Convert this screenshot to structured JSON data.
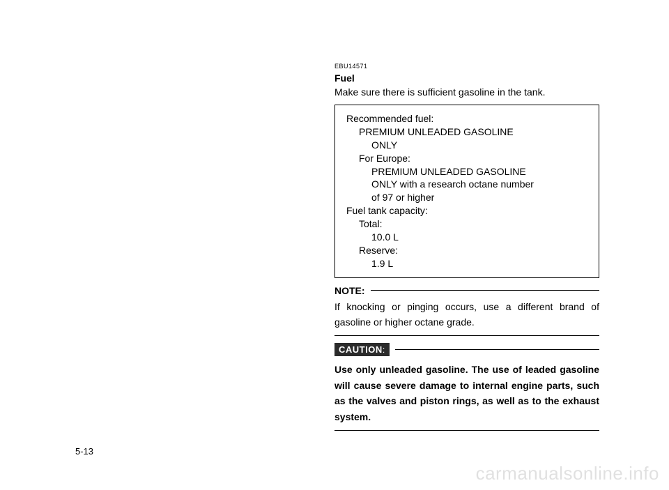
{
  "doc_code": "EBU14571",
  "section_title": "Fuel",
  "intro": "Make sure there is sufficient gasoline in the tank.",
  "spec_box": {
    "lines": [
      {
        "text": "Recommended fuel:",
        "indent": 0
      },
      {
        "text": "PREMIUM UNLEADED GASOLINE",
        "indent": 1
      },
      {
        "text": "ONLY",
        "indent": 2
      },
      {
        "text": "For Europe:",
        "indent": 1
      },
      {
        "text": "PREMIUM UNLEADED GASOLINE",
        "indent": 2
      },
      {
        "text": "ONLY with a research octane number",
        "indent": 2
      },
      {
        "text": "of 97 or higher",
        "indent": 2
      },
      {
        "text": "Fuel tank capacity:",
        "indent": 0
      },
      {
        "text": "Total:",
        "indent": 1
      },
      {
        "text": "10.0 L",
        "indent": 2
      },
      {
        "text": "Reserve:",
        "indent": 1
      },
      {
        "text": "1.9 L",
        "indent": 2
      }
    ]
  },
  "note_label": "NOTE:",
  "note_body": "If knocking or pinging occurs, use a different brand of gasoline or higher octane grade.",
  "caution_label": "CAUTION",
  "caution_colon": ":",
  "caution_body": "Use only unleaded gasoline. The use of leaded gasoline will cause severe damage to internal engine parts, such as the valves and piston rings, as well as to the exhaust system.",
  "page_number": "5-13",
  "watermark": "carmanualsonline.info",
  "colors": {
    "text": "#000000",
    "background": "#ffffff",
    "caution_bg": "#2b2b2b",
    "caution_text": "#ffffff",
    "watermark": "rgba(0,0,0,0.12)"
  }
}
